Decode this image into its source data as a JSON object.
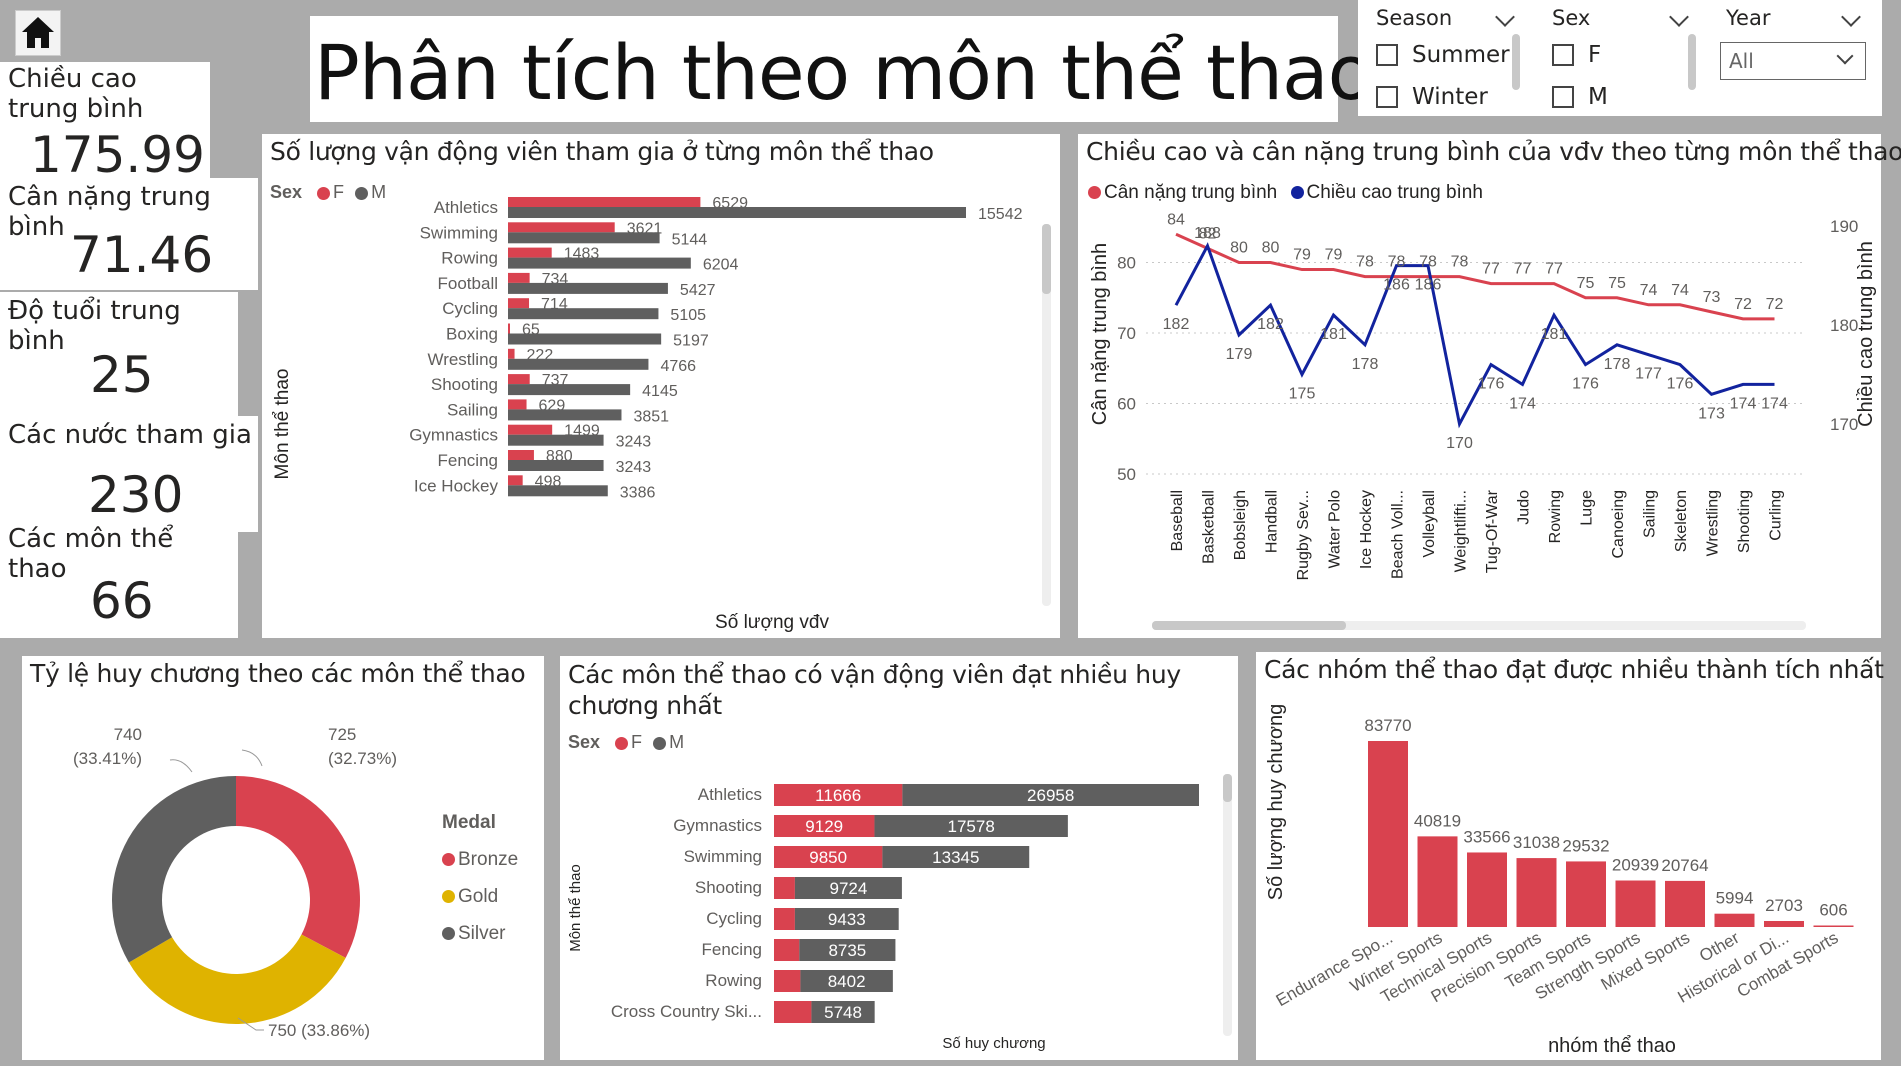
{
  "header": {
    "home_icon": "home-icon",
    "title": "Phân tích theo môn thể thao"
  },
  "kpis": [
    {
      "label": "Chiều cao trung bình",
      "value": "175.99"
    },
    {
      "label": "Cân nặng trung bình",
      "value": "71.46"
    },
    {
      "label": "Độ tuổi trung bình",
      "value": "25"
    },
    {
      "label": "Các nước tham gia",
      "value": "230"
    },
    {
      "label": "Các môn thể thao",
      "value": "66"
    }
  ],
  "slicers": {
    "season": {
      "label": "Season",
      "options": [
        "Summer",
        "Winter"
      ]
    },
    "sex": {
      "label": "Sex",
      "options": [
        "F",
        "M"
      ]
    },
    "year": {
      "label": "Year",
      "selected": "All"
    }
  },
  "colors": {
    "female": "#d9424f",
    "male": "#5f5f5f",
    "weight": "#d9424f",
    "height": "#12239e",
    "bronze": "#d9424f",
    "gold": "#dfb300",
    "silver": "#5f5f5f"
  },
  "chart_data": [
    {
      "type": "bar",
      "title": "Số lượng vận động viên tham gia ở từng môn thể thao",
      "legend_title": "Sex",
      "xlabel": "Số lượng vđv",
      "ylabel": "Môn thể thao",
      "categories": [
        "Athletics",
        "Swimming",
        "Rowing",
        "Football",
        "Cycling",
        "Boxing",
        "Wrestling",
        "Shooting",
        "Sailing",
        "Gymnastics",
        "Fencing",
        "Ice Hockey"
      ],
      "series": [
        {
          "name": "F",
          "values": [
            6529,
            3621,
            1483,
            734,
            714,
            65,
            222,
            737,
            629,
            1499,
            880,
            498
          ]
        },
        {
          "name": "M",
          "values": [
            15542,
            5144,
            6204,
            5427,
            5105,
            5197,
            4766,
            4145,
            3851,
            3243,
            3243,
            3386
          ]
        }
      ]
    },
    {
      "type": "line",
      "title": "Chiều cao và cân nặng trung bình của vđv theo từng môn thể thao",
      "ylabel": "Cân nặng trung bình",
      "y2label": "Chiều cao trung bình",
      "ylim": [
        50,
        80
      ],
      "y2lim": [
        170,
        190
      ],
      "yticks": [
        50,
        60,
        70,
        80
      ],
      "y2ticks": [
        170,
        180,
        190
      ],
      "categories": [
        "Baseball",
        "Basketball",
        "Bobsleigh",
        "Handball",
        "Rugby Sev...",
        "Water Polo",
        "Ice Hockey",
        "Beach Voll...",
        "Volleyball",
        "Weightlifti...",
        "Tug-Of-War",
        "Judo",
        "Rowing",
        "Luge",
        "Canoeing",
        "Sailing",
        "Skeleton",
        "Wrestling",
        "Shooting",
        "Curling"
      ],
      "series": [
        {
          "name": "Cân nặng trung bình",
          "axis": "left",
          "values": [
            84,
            82,
            80,
            80,
            79,
            79,
            78,
            78,
            78,
            78,
            77,
            77,
            77,
            75,
            75,
            74,
            74,
            73,
            72,
            72
          ]
        },
        {
          "name": "Chiều cao trung bình",
          "axis": "right",
          "values": [
            182,
            188,
            179,
            182,
            175,
            181,
            178,
            186,
            186,
            170,
            176,
            174,
            181,
            176,
            178,
            177,
            176,
            173,
            174,
            174
          ]
        }
      ],
      "weight_labels": [
        "84",
        "82",
        "80",
        "80",
        "79",
        "79",
        "78",
        "78",
        "78",
        "78",
        "77",
        "77",
        "77",
        "75",
        "75",
        "74",
        "74",
        "73",
        "72",
        "72"
      ],
      "height_labels": [
        "182",
        "188",
        "179",
        "182",
        "175",
        "181",
        "178",
        "186",
        "186",
        "170",
        "176",
        "174",
        "181",
        "176",
        "178",
        "177",
        "176",
        "173",
        "174",
        "174"
      ]
    },
    {
      "type": "pie",
      "title": "Tỷ lệ huy chương theo các môn thể thao",
      "legend_title": "Medal",
      "slices": [
        {
          "name": "Bronze",
          "value": 725,
          "label": "725 (32.73%)"
        },
        {
          "name": "Gold",
          "value": 750,
          "label": "750 (33.86%)"
        },
        {
          "name": "Silver",
          "value": 740,
          "label": "740 (33.41%)"
        }
      ]
    },
    {
      "type": "bar",
      "title": "Các môn thể thao có vận động viên đạt nhiều huy chương nhất",
      "legend_title": "Sex",
      "xlabel": "Số huy chương",
      "ylabel": "Môn thể thao",
      "categories": [
        "Athletics",
        "Gymnastics",
        "Swimming",
        "Shooting",
        "Cycling",
        "Fencing",
        "Rowing",
        "Cross Country Ski..."
      ],
      "series": [
        {
          "name": "F",
          "values": [
            11666,
            9129,
            9850,
            1900,
            1900,
            2300,
            2400,
            3400
          ]
        },
        {
          "name": "M",
          "values": [
            26958,
            17578,
            13345,
            9724,
            9433,
            8735,
            8402,
            5748
          ]
        }
      ],
      "labels_f": [
        "11666",
        "9129",
        "9850",
        "",
        "",
        "",
        "",
        ""
      ],
      "labels_m": [
        "26958",
        "17578",
        "13345",
        "9724",
        "9433",
        "8735",
        "8402",
        "5748"
      ]
    },
    {
      "type": "bar",
      "title": "Các nhóm thể thao đạt được nhiều thành tích nhất",
      "xlabel": "nhóm thể thao",
      "ylabel": "Số lượng huy chương",
      "categories": [
        "Endurance Spo...",
        "Winter Sports",
        "Technical Sports",
        "Precision Sports",
        "Team Sports",
        "Strength Sports",
        "Mixed Sports",
        "Other",
        "Historical or Di...",
        "Combat Sports"
      ],
      "values": [
        83770,
        40819,
        33566,
        31038,
        29532,
        20939,
        20764,
        5994,
        2703,
        606
      ]
    }
  ]
}
